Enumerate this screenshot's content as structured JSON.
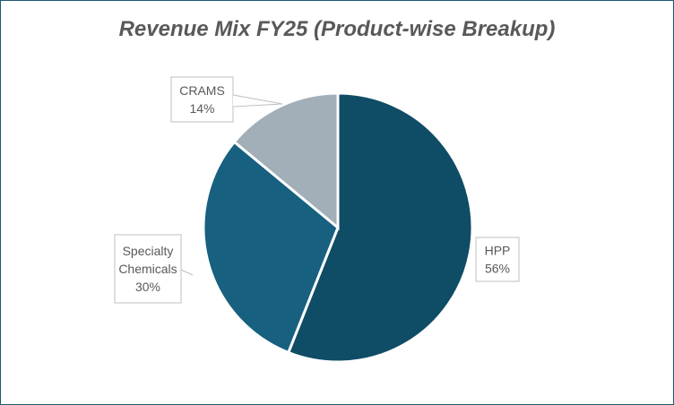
{
  "chart_data": {
    "type": "pie",
    "title": "Revenue Mix FY25 (Product-wise Breakup)",
    "categories": [
      "HPP",
      "Specialty Chemicals",
      "CRAMS"
    ],
    "values": [
      56,
      30,
      14
    ],
    "data_labels": [
      [
        "HPP",
        "56%"
      ],
      [
        "Specialty",
        "Chemicals",
        "30%"
      ],
      [
        "CRAMS",
        "14%"
      ]
    ],
    "colors": [
      "#0f4c66",
      "#17607f",
      "#a2aeb8"
    ],
    "legend": "none"
  }
}
